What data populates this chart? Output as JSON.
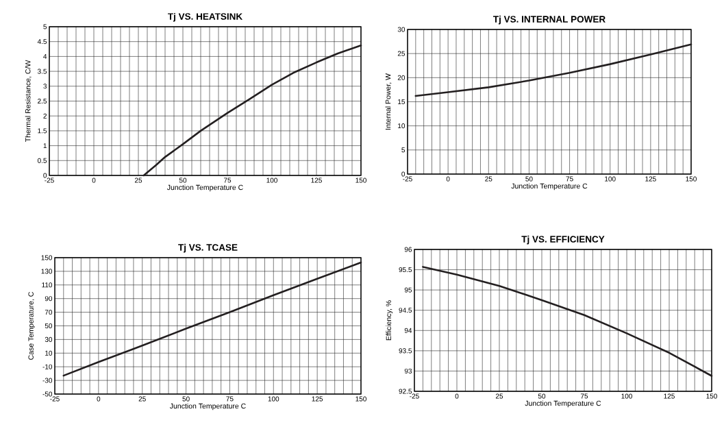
{
  "chart_data": [
    {
      "type": "line",
      "title": "Tj VS. HEATSINK",
      "xlabel": "Junction Temperature  C",
      "ylabel": "Thermal Resistance,  C/W",
      "color": "#231f20",
      "marker": "none",
      "line_style": "solid",
      "grid": true,
      "x": [
        28,
        35,
        40,
        50,
        60,
        75,
        87,
        100,
        112,
        125,
        137,
        150
      ],
      "values": [
        0,
        0.35,
        0.62,
        1.05,
        1.5,
        2.1,
        2.55,
        3.05,
        3.45,
        3.8,
        4.1,
        4.37
      ],
      "xlim": [
        -25,
        150
      ],
      "ylim": [
        0,
        5
      ],
      "xticks": [
        -25,
        {
          "value": -20,
          "label": null
        },
        {
          "value": -15,
          "label": null
        },
        {
          "value": -10,
          "label": null
        },
        {
          "value": -5,
          "label": null
        },
        0,
        {
          "value": 5,
          "label": null
        },
        {
          "value": 10,
          "label": null
        },
        {
          "value": 15,
          "label": null
        },
        {
          "value": 20,
          "label": null
        },
        25,
        {
          "value": 30,
          "label": null
        },
        {
          "value": 35,
          "label": null
        },
        {
          "value": 40,
          "label": null
        },
        {
          "value": 45,
          "label": null
        },
        50,
        {
          "value": 55,
          "label": null
        },
        {
          "value": 60,
          "label": null
        },
        {
          "value": 65,
          "label": null
        },
        {
          "value": 70,
          "label": null
        },
        75,
        {
          "value": 80,
          "label": null
        },
        {
          "value": 85,
          "label": null
        },
        {
          "value": 90,
          "label": null
        },
        {
          "value": 95,
          "label": null
        },
        100,
        {
          "value": 105,
          "label": null
        },
        {
          "value": 110,
          "label": null
        },
        {
          "value": 115,
          "label": null
        },
        {
          "value": 120,
          "label": null
        },
        125,
        {
          "value": 130,
          "label": null
        },
        {
          "value": 135,
          "label": null
        },
        {
          "value": 140,
          "label": null
        },
        {
          "value": 145,
          "label": null
        },
        150
      ],
      "yticks": [
        0,
        0.5,
        1,
        1.5,
        2,
        2.5,
        3,
        3.5,
        4,
        4.5,
        5
      ]
    },
    {
      "type": "line",
      "title": "Tj VS. INTERNAL POWER",
      "xlabel": "Junction Temperature  C",
      "ylabel": "Internal Power, W",
      "color": "#231f20",
      "marker": "none",
      "line_style": "solid",
      "grid": true,
      "x": [
        -20,
        0,
        25,
        50,
        75,
        100,
        125,
        150
      ],
      "values": [
        16.2,
        17,
        18,
        19.4,
        21,
        22.8,
        24.8,
        26.9
      ],
      "xlim": [
        -25,
        150
      ],
      "ylim": [
        0,
        30
      ],
      "xticks": [
        -25,
        {
          "value": -20,
          "label": null
        },
        {
          "value": -15,
          "label": null
        },
        {
          "value": -10,
          "label": null
        },
        {
          "value": -5,
          "label": null
        },
        0,
        {
          "value": 5,
          "label": null
        },
        {
          "value": 10,
          "label": null
        },
        {
          "value": 15,
          "label": null
        },
        {
          "value": 20,
          "label": null
        },
        25,
        {
          "value": 30,
          "label": null
        },
        {
          "value": 35,
          "label": null
        },
        {
          "value": 40,
          "label": null
        },
        {
          "value": 45,
          "label": null
        },
        50,
        {
          "value": 55,
          "label": null
        },
        {
          "value": 60,
          "label": null
        },
        {
          "value": 65,
          "label": null
        },
        {
          "value": 70,
          "label": null
        },
        75,
        {
          "value": 80,
          "label": null
        },
        {
          "value": 85,
          "label": null
        },
        {
          "value": 90,
          "label": null
        },
        {
          "value": 95,
          "label": null
        },
        100,
        {
          "value": 105,
          "label": null
        },
        {
          "value": 110,
          "label": null
        },
        {
          "value": 115,
          "label": null
        },
        {
          "value": 120,
          "label": null
        },
        125,
        {
          "value": 130,
          "label": null
        },
        {
          "value": 135,
          "label": null
        },
        {
          "value": 140,
          "label": null
        },
        {
          "value": 145,
          "label": null
        },
        150
      ],
      "yticks": [
        0,
        5,
        10,
        15,
        20,
        25,
        30
      ]
    },
    {
      "type": "line",
      "title": "Tj VS. TCASE",
      "xlabel": "Junction Temperature  C",
      "ylabel": "Case Temperature, C",
      "color": "#231f20",
      "marker": "none",
      "line_style": "solid",
      "grid": true,
      "x": [
        -20,
        0,
        25,
        50,
        75,
        100,
        125,
        150
      ],
      "values": [
        -23,
        -3,
        21,
        46,
        70,
        95,
        119,
        143
      ],
      "xlim": [
        -25,
        150
      ],
      "ylim": [
        -50,
        150
      ],
      "xticks": [
        -25,
        {
          "value": -20,
          "label": null
        },
        {
          "value": -15,
          "label": null
        },
        {
          "value": -10,
          "label": null
        },
        {
          "value": -5,
          "label": null
        },
        0,
        {
          "value": 5,
          "label": null
        },
        {
          "value": 10,
          "label": null
        },
        {
          "value": 15,
          "label": null
        },
        {
          "value": 20,
          "label": null
        },
        25,
        {
          "value": 30,
          "label": null
        },
        {
          "value": 35,
          "label": null
        },
        {
          "value": 40,
          "label": null
        },
        {
          "value": 45,
          "label": null
        },
        50,
        {
          "value": 55,
          "label": null
        },
        {
          "value": 60,
          "label": null
        },
        {
          "value": 65,
          "label": null
        },
        {
          "value": 70,
          "label": null
        },
        75,
        {
          "value": 80,
          "label": null
        },
        {
          "value": 85,
          "label": null
        },
        {
          "value": 90,
          "label": null
        },
        {
          "value": 95,
          "label": null
        },
        100,
        {
          "value": 105,
          "label": null
        },
        {
          "value": 110,
          "label": null
        },
        {
          "value": 115,
          "label": null
        },
        {
          "value": 120,
          "label": null
        },
        125,
        {
          "value": 130,
          "label": null
        },
        {
          "value": 135,
          "label": null
        },
        {
          "value": 140,
          "label": null
        },
        {
          "value": 145,
          "label": null
        },
        150
      ],
      "yticks": [
        -50,
        -30,
        -10,
        10,
        30,
        50,
        70,
        90,
        110,
        130,
        150
      ]
    },
    {
      "type": "line",
      "title": "Tj VS. EFFICIENCY",
      "xlabel": "Junction Temperature  C",
      "ylabel": "Efficiency, %",
      "color": "#231f20",
      "marker": "none",
      "line_style": "solid",
      "grid": true,
      "x": [
        -20,
        0,
        25,
        50,
        75,
        100,
        125,
        150
      ],
      "values": [
        95.57,
        95.38,
        95.1,
        94.75,
        94.38,
        93.93,
        93.45,
        92.88
      ],
      "xlim": [
        -25,
        150
      ],
      "ylim": [
        92.5,
        96
      ],
      "xticks": [
        -25,
        {
          "value": -20,
          "label": null
        },
        {
          "value": -15,
          "label": null
        },
        {
          "value": -10,
          "label": null
        },
        {
          "value": -5,
          "label": null
        },
        0,
        {
          "value": 5,
          "label": null
        },
        {
          "value": 10,
          "label": null
        },
        {
          "value": 15,
          "label": null
        },
        {
          "value": 20,
          "label": null
        },
        25,
        {
          "value": 30,
          "label": null
        },
        {
          "value": 35,
          "label": null
        },
        {
          "value": 40,
          "label": null
        },
        {
          "value": 45,
          "label": null
        },
        50,
        {
          "value": 55,
          "label": null
        },
        {
          "value": 60,
          "label": null
        },
        {
          "value": 65,
          "label": null
        },
        {
          "value": 70,
          "label": null
        },
        75,
        {
          "value": 80,
          "label": null
        },
        {
          "value": 85,
          "label": null
        },
        {
          "value": 90,
          "label": null
        },
        {
          "value": 95,
          "label": null
        },
        100,
        {
          "value": 105,
          "label": null
        },
        {
          "value": 110,
          "label": null
        },
        {
          "value": 115,
          "label": null
        },
        {
          "value": 120,
          "label": null
        },
        125,
        {
          "value": 130,
          "label": null
        },
        {
          "value": 135,
          "label": null
        },
        {
          "value": 140,
          "label": null
        },
        {
          "value": 145,
          "label": null
        },
        150
      ],
      "yticks": [
        92.5,
        93,
        93.5,
        94,
        94.5,
        95,
        95.5,
        96
      ]
    }
  ]
}
